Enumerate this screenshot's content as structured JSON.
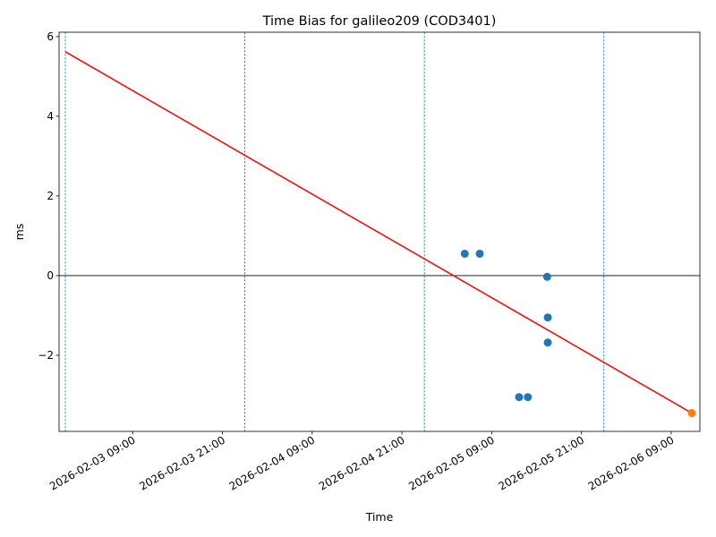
{
  "chart_data": {
    "type": "scatter",
    "title": "Time Bias for galileo209 (COD3401)",
    "x_label": "Time",
    "y_label": "ms",
    "xlim": [
      "2026-02-02 23:10",
      "2026-02-06 12:50"
    ],
    "ylim": [
      -3.91,
      6.11
    ],
    "xticks": [
      "2026-02-03 09:00",
      "2026-02-03 21:00",
      "2026-02-04 09:00",
      "2026-02-04 21:00",
      "2026-02-05 09:00",
      "2026-02-05 21:00",
      "2026-02-06 09:00"
    ],
    "yticks": [
      {
        "value": -2,
        "label": "−2"
      },
      0,
      2,
      4,
      6
    ],
    "series": [
      {
        "color": "#1f77b4",
        "x": [
          "2026-02-05 05:24",
          "2026-02-05 07:24",
          "2026-02-05 12:40",
          "2026-02-05 13:50",
          "2026-02-05 16:25",
          "2026-02-05 16:30",
          "2026-02-05 16:30"
        ],
        "values": [
          0.55,
          0.55,
          -3.05,
          -3.05,
          -0.03,
          -1.05,
          -1.68
        ]
      },
      {
        "color": "#ff7f0e",
        "x": [
          "2026-02-06 11:45"
        ],
        "values": [
          -3.45
        ]
      }
    ],
    "line": {
      "color": "#ff0000",
      "x": [
        "2026-02-03 00:00",
        "2026-02-06 11:45"
      ],
      "values": [
        5.62,
        -3.45
      ]
    },
    "vlines": {
      "color": "#1f77b4",
      "x": [
        "2026-02-03 00:00",
        "2026-02-04 00:00",
        "2026-02-05 00:00",
        "2026-02-06 00:00"
      ]
    },
    "hline": {
      "color": "#000000",
      "value": 0
    }
  }
}
